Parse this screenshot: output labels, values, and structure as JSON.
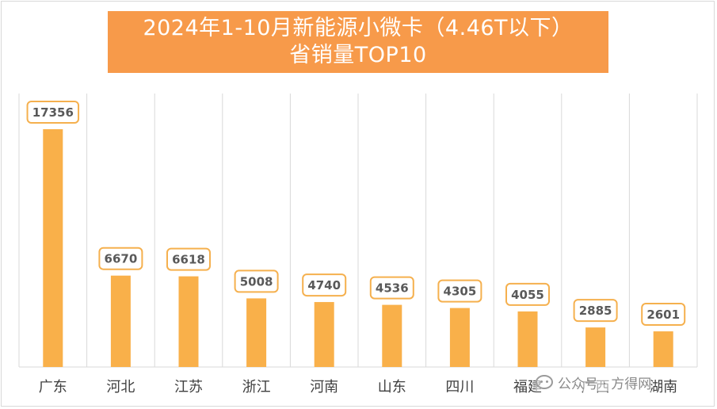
{
  "title": {
    "line1": "2024年1-10月新能源小微卡（4.46T以下）",
    "line2": "省销量TOP10"
  },
  "watermark": {
    "text": "公众号 · 方得网"
  },
  "colors": {
    "bar": "#f9b04a",
    "label_border": "#f5b04e",
    "title_bg": "#f79a4a",
    "grid": "#d9d9d9"
  },
  "chart_data": {
    "type": "bar",
    "title": "2024年1-10月新能源小微卡（4.46T以下）省销量TOP10",
    "categories": [
      "广东",
      "河北",
      "江苏",
      "浙江",
      "河南",
      "山东",
      "四川",
      "福建",
      "广西",
      "湖南"
    ],
    "values": [
      17356,
      6670,
      6618,
      5008,
      4740,
      4536,
      4305,
      4055,
      2885,
      2601
    ],
    "data_labels": [
      "17356",
      "6670",
      "6618",
      "5008",
      "4740",
      "4536",
      "4305",
      "4055",
      "2885",
      "2601"
    ],
    "xlabel": "",
    "ylabel": "",
    "ylim": [
      0,
      17356
    ],
    "grid": "vertical",
    "legend": "none"
  }
}
